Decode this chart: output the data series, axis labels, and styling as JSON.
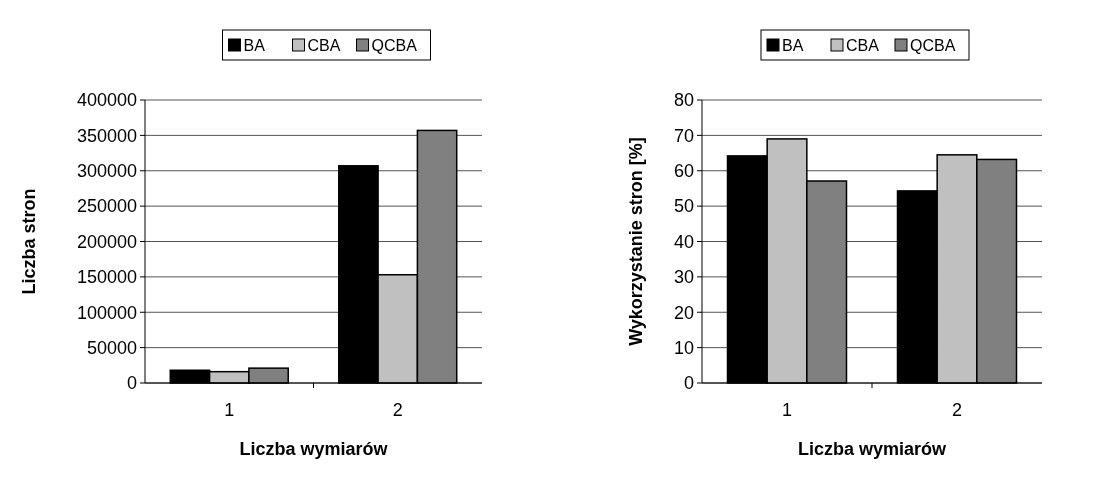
{
  "chart_data": [
    {
      "type": "bar",
      "categories": [
        "1",
        "2"
      ],
      "xlabel": "Liczba wymiarów",
      "ylabel": "Liczba stron",
      "ylim": [
        0,
        400000
      ],
      "yticks": [
        0,
        50000,
        100000,
        150000,
        200000,
        250000,
        300000,
        350000,
        400000
      ],
      "grid": "y",
      "legend": "top",
      "series": [
        {
          "name": "BA",
          "color": "#000000",
          "values": [
            18000,
            307000
          ]
        },
        {
          "name": "CBA",
          "color": "#c0c0c0",
          "values": [
            16000,
            153000
          ]
        },
        {
          "name": "QCBA",
          "color": "#808080",
          "values": [
            21000,
            357000
          ]
        }
      ]
    },
    {
      "type": "bar",
      "categories": [
        "1",
        "2"
      ],
      "xlabel": "Liczba wymiarów",
      "ylabel": "Wykorzystanie stron [%]",
      "ylim": [
        0,
        80
      ],
      "yticks": [
        0,
        10,
        20,
        30,
        40,
        50,
        60,
        70,
        80
      ],
      "grid": "y",
      "legend": "top",
      "series": [
        {
          "name": "BA",
          "color": "#000000",
          "values": [
            64.2,
            54.3
          ]
        },
        {
          "name": "CBA",
          "color": "#c0c0c0",
          "values": [
            69,
            64.5
          ]
        },
        {
          "name": "QCBA",
          "color": "#808080",
          "values": [
            57.1,
            63.2
          ]
        }
      ]
    }
  ]
}
